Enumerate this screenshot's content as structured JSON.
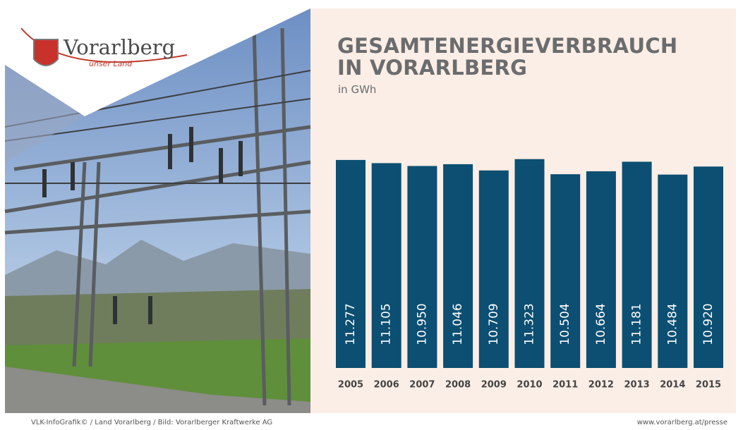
{
  "logo": {
    "name": "Vorarlberg",
    "tagline": "unser Land"
  },
  "chart_data": {
    "type": "bar",
    "title": "GESAMTENERGIEVERBRAUCH IN VORARLBERG",
    "subtitle": "in GWh",
    "categories": [
      "2005",
      "2006",
      "2007",
      "2008",
      "2009",
      "2010",
      "2011",
      "2012",
      "2013",
      "2014",
      "2015"
    ],
    "values": [
      11277,
      11105,
      10950,
      11046,
      10709,
      11323,
      10504,
      10664,
      11181,
      10484,
      10920
    ],
    "value_labels": [
      "11.277",
      "11.105",
      "10.950",
      "11.046",
      "10.709",
      "11.323",
      "10.504",
      "10.664",
      "11.181",
      "10.484",
      "10.920"
    ],
    "color": "#0c4f72",
    "ylim": [
      0,
      12000
    ]
  },
  "footer": {
    "credits": "VLK-InfoGrafik© / Land Vorarlberg / Bild: Vorarlberger Kraftwerke AG",
    "url": "www.vorarlberg.at/presse"
  }
}
